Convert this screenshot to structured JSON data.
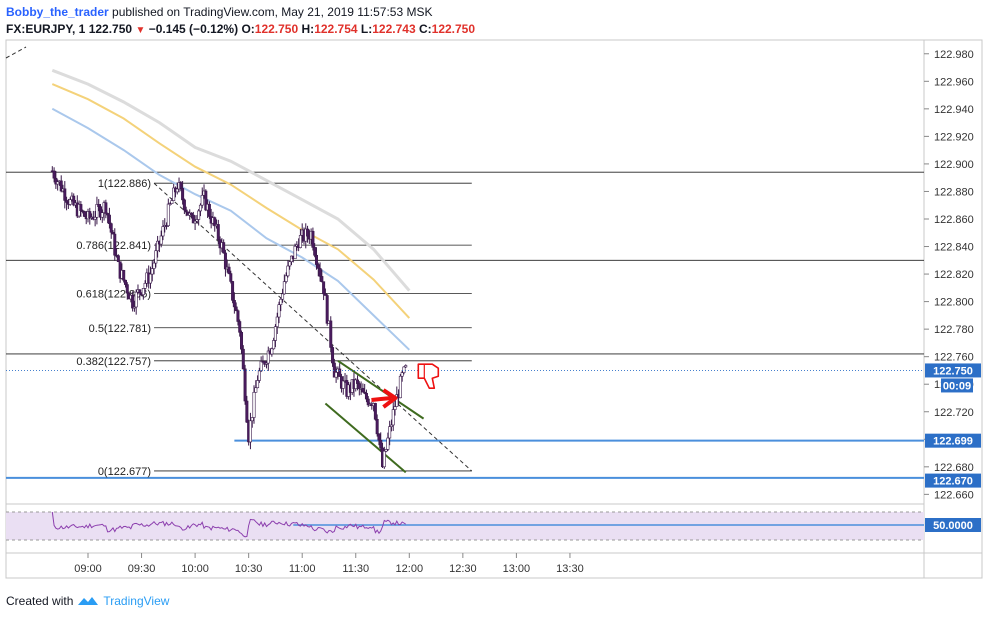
{
  "header": {
    "author": "Bobby_the_trader",
    "published": " published on TradingView.com, May 21, 2019 11:57:53 MSK",
    "symbol": "FX:EURJPY, 1",
    "last": "122.750",
    "change_icon": "down-triangle-icon",
    "change": "−0.145 (−0.12%)",
    "o_label": "O:",
    "o": "122.750",
    "h_label": "H:",
    "h": "122.754",
    "l_label": "L:",
    "l": "122.743",
    "c_label": "C:",
    "c": "122.750"
  },
  "footer": {
    "created_with": "Created with",
    "brand": "TradingView",
    "logo_icon": "tradingview-logo-icon"
  },
  "colors": {
    "bull": "#ffffff",
    "bear": "#4a1b5e",
    "wick": "#3a1a4a",
    "ma_fast": "#aac8ec",
    "ma_mid": "#f4d27a",
    "ma_slow": "#dcdcdc",
    "support": "#4a8fdc",
    "channel": "#3f6b1f",
    "arrow": "#ee1111",
    "price_tag": "#2c6fc7",
    "rsi": "#8c3fae",
    "rsi_band": "#eadff3"
  },
  "chart_data": {
    "type": "candlestick",
    "symbol": "EURJPY",
    "timeframe": "1",
    "x_axis": {
      "ticks": [
        "09:00",
        "09:30",
        "10:00",
        "10:30",
        "11:00",
        "11:30",
        "12:00",
        "12:30",
        "13:00",
        "13:30"
      ]
    },
    "y_axis": {
      "range": [
        122.653,
        122.99
      ],
      "ticks": [
        "122.980",
        "122.960",
        "122.940",
        "122.920",
        "122.900",
        "122.880",
        "122.860",
        "122.840",
        "122.820",
        "122.800",
        "122.780",
        "122.760",
        "122.740",
        "122.720",
        "122.700",
        "122.680",
        "122.660"
      ]
    },
    "price_tags": [
      {
        "label": "122.750",
        "value": 122.75,
        "sub": "00:09"
      },
      {
        "label": "122.699",
        "value": 122.699
      },
      {
        "label": "122.670",
        "value": 122.67
      }
    ],
    "fibonacci": {
      "levels": [
        {
          "ratio": "1",
          "price": "122.886",
          "label": "1(122.886)"
        },
        {
          "ratio": "0.786",
          "price": "122.841",
          "label": "0.786(122.841)"
        },
        {
          "ratio": "0.618",
          "price": "122.806",
          "label": "0.618(122.806)"
        },
        {
          "ratio": "0.5",
          "price": "122.781",
          "label": "0.5(122.781)"
        },
        {
          "ratio": "0.382",
          "price": "122.757",
          "label": "0.382(122.757)"
        },
        {
          "ratio": "0",
          "price": "122.677",
          "label": "0(122.677)"
        }
      ]
    },
    "horizontal_lines": [
      122.894,
      122.83,
      122.762
    ],
    "support_lines": [
      122.699,
      122.672
    ],
    "trendline": {
      "from": {
        "time": "09:37",
        "price": 122.886
      },
      "to": {
        "time": "12:35",
        "price": 122.677
      }
    },
    "channel": {
      "upper": {
        "from": {
          "time": "11:20",
          "price": 122.757
        },
        "to": {
          "time": "12:08",
          "price": 122.715
        }
      },
      "lower": {
        "from": {
          "time": "11:13",
          "price": 122.726
        },
        "to": {
          "time": "11:58",
          "price": 122.676
        }
      }
    },
    "series": [
      {
        "name": "MA fast",
        "role": "ma_fast",
        "points": [
          [
            "08:40",
            122.94
          ],
          [
            "09:00",
            122.926
          ],
          [
            "09:20",
            122.91
          ],
          [
            "09:40",
            122.892
          ],
          [
            "10:00",
            122.878
          ],
          [
            "10:20",
            122.866
          ],
          [
            "10:40",
            122.846
          ],
          [
            "11:00",
            122.832
          ],
          [
            "11:20",
            122.815
          ],
          [
            "11:40",
            122.79
          ],
          [
            "12:00",
            122.765
          ]
        ]
      },
      {
        "name": "MA mid",
        "role": "ma_mid",
        "points": [
          [
            "08:40",
            122.958
          ],
          [
            "09:00",
            122.947
          ],
          [
            "09:20",
            122.933
          ],
          [
            "09:40",
            122.915
          ],
          [
            "10:00",
            122.898
          ],
          [
            "10:20",
            122.885
          ],
          [
            "10:40",
            122.868
          ],
          [
            "11:00",
            122.852
          ],
          [
            "11:20",
            122.838
          ],
          [
            "11:40",
            122.816
          ],
          [
            "12:00",
            122.788
          ]
        ]
      },
      {
        "name": "MA slow",
        "role": "ma_slow",
        "points": [
          [
            "08:40",
            122.968
          ],
          [
            "09:00",
            122.958
          ],
          [
            "09:20",
            122.945
          ],
          [
            "09:40",
            122.93
          ],
          [
            "10:00",
            122.912
          ],
          [
            "10:20",
            122.902
          ],
          [
            "10:40",
            122.888
          ],
          [
            "11:00",
            122.874
          ],
          [
            "11:20",
            122.86
          ],
          [
            "11:40",
            122.838
          ],
          [
            "12:00",
            122.808
          ]
        ]
      },
      {
        "name": "Price",
        "role": "close",
        "points": [
          [
            "08:40",
            122.895
          ],
          [
            "08:50",
            122.872
          ],
          [
            "09:00",
            122.86
          ],
          [
            "09:10",
            122.87
          ],
          [
            "09:17",
            122.825
          ],
          [
            "09:25",
            122.8
          ],
          [
            "09:35",
            122.82
          ],
          [
            "09:45",
            122.865
          ],
          [
            "09:50",
            122.885
          ],
          [
            "09:58",
            122.858
          ],
          [
            "10:05",
            122.875
          ],
          [
            "10:15",
            122.84
          ],
          [
            "10:25",
            122.78
          ],
          [
            "10:30",
            122.703
          ],
          [
            "10:35",
            122.745
          ],
          [
            "10:43",
            122.77
          ],
          [
            "10:50",
            122.815
          ],
          [
            "10:58",
            122.845
          ],
          [
            "11:05",
            122.85
          ],
          [
            "11:12",
            122.81
          ],
          [
            "11:18",
            122.75
          ],
          [
            "11:25",
            122.735
          ],
          [
            "11:30",
            122.74
          ],
          [
            "11:35",
            122.73
          ],
          [
            "11:40",
            122.728
          ],
          [
            "11:45",
            122.68
          ],
          [
            "11:52",
            122.725
          ],
          [
            "11:56",
            122.745
          ],
          [
            "11:58",
            122.75
          ]
        ]
      }
    ],
    "indicator": {
      "name": "RSI",
      "level_label": "50.0000",
      "range": [
        0,
        100
      ]
    },
    "annotations": [
      {
        "kind": "arrow",
        "icon": "red-arrow-icon",
        "at": {
          "time": "11:50",
          "price": 122.73
        }
      },
      {
        "kind": "thumbs-down",
        "icon": "thumbs-down-icon",
        "at": {
          "time": "12:00",
          "price": 122.748
        }
      }
    ]
  }
}
